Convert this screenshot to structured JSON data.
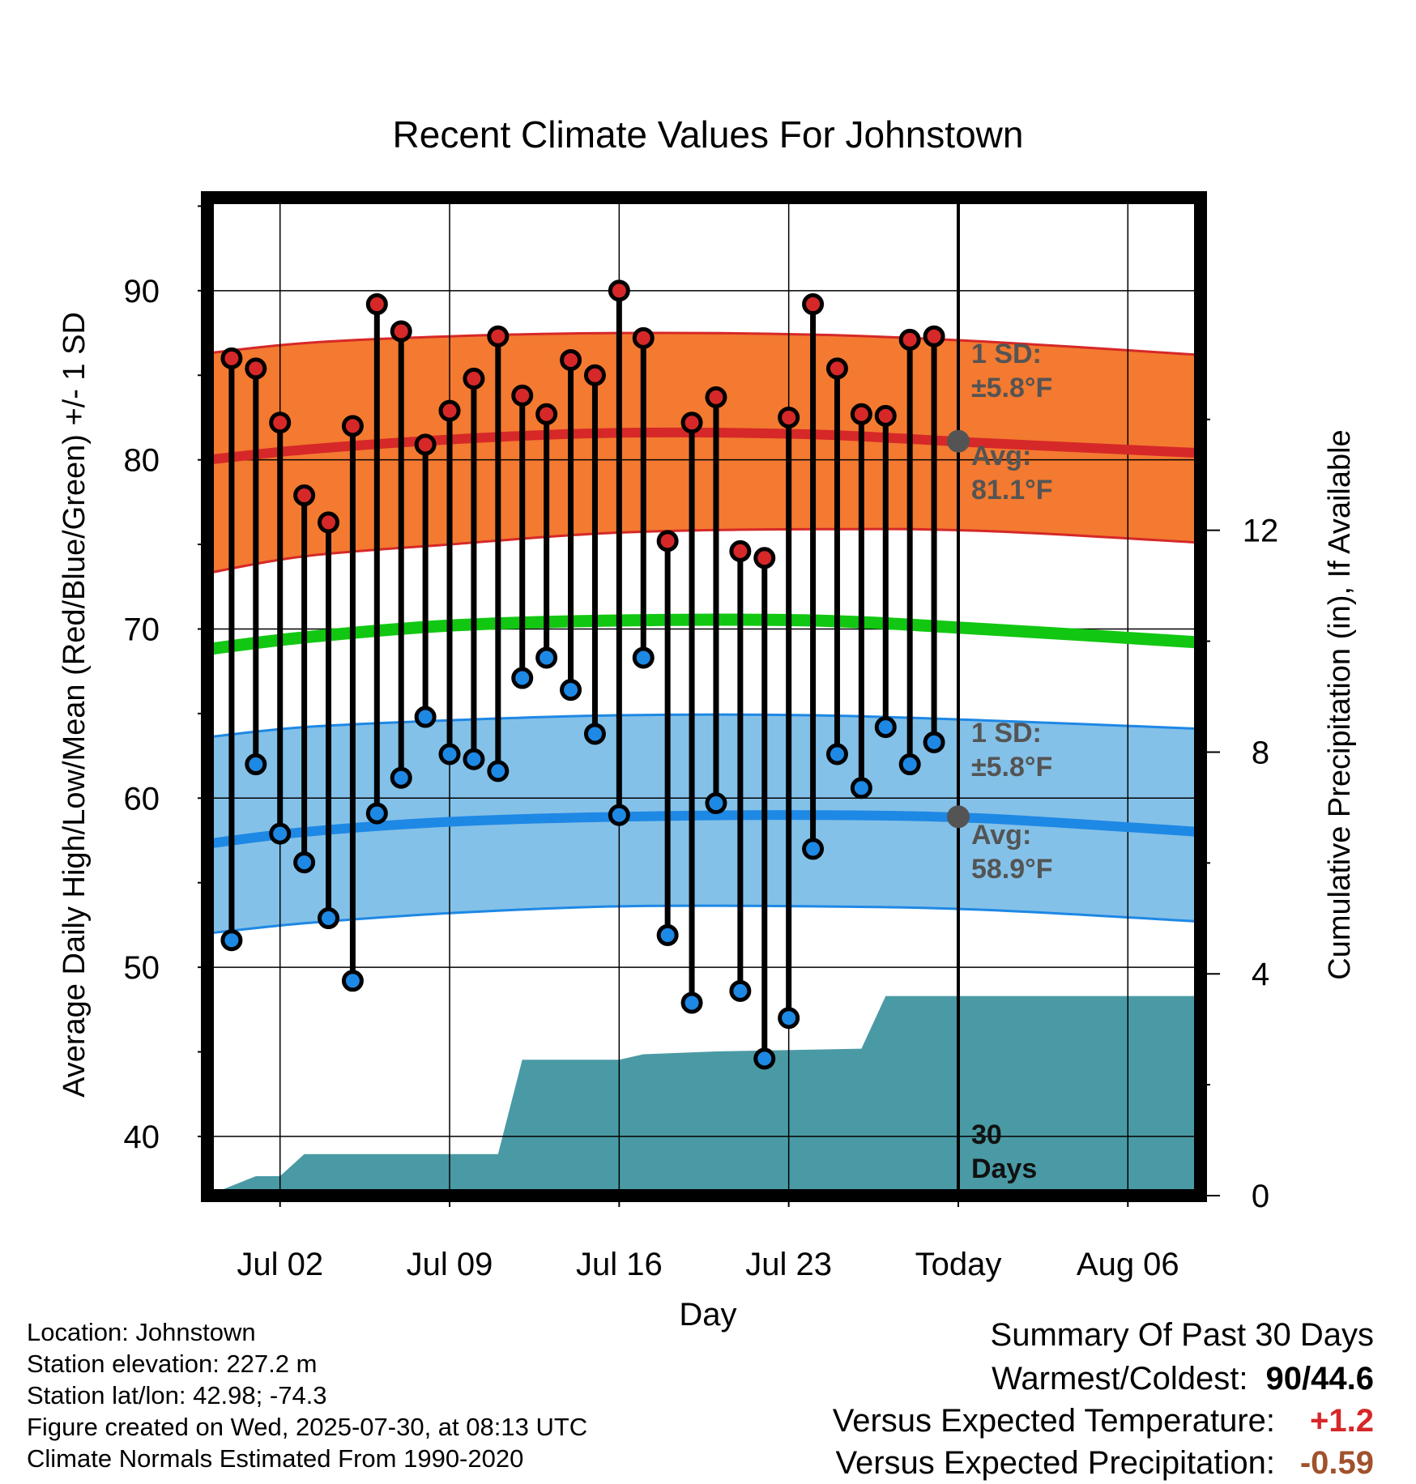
{
  "chart_data": {
    "type": "line",
    "title": "Recent Climate Values For Johnstown",
    "xlabel": "Day",
    "ylabel": "Average Daily High/Low/Mean (Red/Blue/Green) +/- 1 SD",
    "ylabel_right": "Cumulative Precipitation (in), If Available",
    "ylim": [
      36.5,
      95.5
    ],
    "y_ticks": [
      40,
      50,
      60,
      70,
      80,
      90
    ],
    "y2lim": [
      0,
      18
    ],
    "y2_ticks": [
      0,
      4,
      8,
      12
    ],
    "x_tick_labels": [
      "Jul 02",
      "Jul 09",
      "Jul 16",
      "Jul 23",
      "Today",
      "Aug 06"
    ],
    "x_tick_days": [
      "2025-07-02",
      "2025-07-09",
      "2025-07-16",
      "2025-07-23",
      "2025-07-30",
      "2025-08-06"
    ],
    "xlim": [
      "2025-06-29",
      "2025-08-09"
    ],
    "grid": true,
    "days": [
      "2025-06-30",
      "2025-07-01",
      "2025-07-02",
      "2025-07-03",
      "2025-07-04",
      "2025-07-05",
      "2025-07-06",
      "2025-07-07",
      "2025-07-08",
      "2025-07-09",
      "2025-07-10",
      "2025-07-11",
      "2025-07-12",
      "2025-07-13",
      "2025-07-14",
      "2025-07-15",
      "2025-07-16",
      "2025-07-17",
      "2025-07-18",
      "2025-07-19",
      "2025-07-20",
      "2025-07-21",
      "2025-07-22",
      "2025-07-23",
      "2025-07-24",
      "2025-07-25",
      "2025-07-26",
      "2025-07-27",
      "2025-07-28",
      "2025-07-29"
    ],
    "series": [
      {
        "name": "High",
        "color": "#d62828",
        "values": [
          86.0,
          85.4,
          82.2,
          77.9,
          76.3,
          82.0,
          89.2,
          87.6,
          80.9,
          82.9,
          84.8,
          87.3,
          83.8,
          82.7,
          85.9,
          85.0,
          90.0,
          87.2,
          75.2,
          82.2,
          83.7,
          74.6,
          74.2,
          82.5,
          89.2,
          85.4,
          82.7,
          82.6,
          87.1,
          87.3
        ]
      },
      {
        "name": "Low",
        "color": "#1e88e5",
        "values": [
          51.6,
          62.0,
          57.9,
          56.2,
          52.9,
          49.2,
          59.1,
          61.2,
          64.8,
          62.6,
          62.3,
          61.6,
          67.1,
          68.3,
          66.4,
          63.8,
          59.0,
          68.3,
          51.9,
          47.9,
          59.7,
          48.6,
          44.6,
          47.0,
          57.0,
          62.6,
          60.6,
          64.2,
          62.0,
          63.3
        ]
      },
      {
        "name": "Cumulative Precipitation",
        "color": "#4a9aa5",
        "x": [
          "2025-06-29",
          "2025-07-01",
          "2025-07-02",
          "2025-07-03",
          "2025-07-11",
          "2025-07-12",
          "2025-07-16",
          "2025-07-17",
          "2025-07-20",
          "2025-07-26",
          "2025-07-27",
          "2025-08-09"
        ],
        "values": [
          0,
          0.35,
          0.35,
          0.75,
          0.75,
          2.45,
          2.45,
          2.55,
          2.6,
          2.65,
          3.6,
          3.6
        ]
      }
    ],
    "normals": {
      "dates": [
        "2025-06-29",
        "2025-07-03",
        "2025-07-09",
        "2025-07-16",
        "2025-07-24",
        "2025-07-31",
        "2025-08-09"
      ],
      "avg_high": [
        80.0,
        80.6,
        81.2,
        81.6,
        81.5,
        81.0,
        80.4
      ],
      "avg_low": [
        57.3,
        58.0,
        58.6,
        58.9,
        59.0,
        58.8,
        58.0
      ],
      "avg_mean": [
        68.8,
        69.5,
        70.2,
        70.5,
        70.5,
        70.0,
        69.2
      ],
      "high_sd_upper": [
        86.3,
        86.9,
        87.3,
        87.5,
        87.4,
        87.0,
        86.2
      ],
      "high_sd_lower": [
        73.3,
        74.3,
        75.0,
        75.7,
        75.9,
        75.8,
        75.1
      ],
      "low_sd_upper": [
        63.6,
        64.2,
        64.6,
        64.9,
        64.9,
        64.6,
        64.1
      ],
      "low_sd_lower": [
        52.0,
        52.6,
        53.2,
        53.6,
        53.6,
        53.4,
        52.7
      ]
    },
    "colors": {
      "high_band": "#f37a30",
      "high_line": "#d62828",
      "low_band": "#84c1e8",
      "low_line": "#1e88e5",
      "mean_line": "#12c712",
      "precip": "#4a9aa5",
      "annotation": "#545454"
    },
    "annotations": {
      "today_label": "Today",
      "period_lines": [
        "30",
        "Days"
      ],
      "high_sd_lines": [
        "1 SD:",
        "±5.8°F"
      ],
      "high_avg_lines": [
        "Avg:",
        "81.1°F"
      ],
      "low_sd_lines": [
        "1 SD:",
        "±5.8°F"
      ],
      "low_avg_lines": [
        "Avg:",
        "58.9°F"
      ],
      "today_high_avg": 81.1,
      "today_low_avg": 58.9
    }
  },
  "station_info": {
    "location": "Location: Johnstown",
    "elevation": "Station elevation: 227.2 m",
    "latlon": "Station lat/lon: 42.98; -74.3",
    "created": "Figure created on Wed, 2025-07-30, at 08:13 UTC",
    "normals": "Climate Normals Estimated From 1990-2020"
  },
  "summary": {
    "title": "Summary Of Past 30 Days",
    "warmest_coldest_label": "Warmest/Coldest:",
    "warmest_coldest_value": "90/44.6",
    "temp_label": "Versus Expected Temperature:",
    "temp_value": "+1.2",
    "temp_color": "#d62828",
    "precip_label": "Versus Expected Precipitation:",
    "precip_value": "-0.59",
    "precip_color": "#a0522d"
  }
}
